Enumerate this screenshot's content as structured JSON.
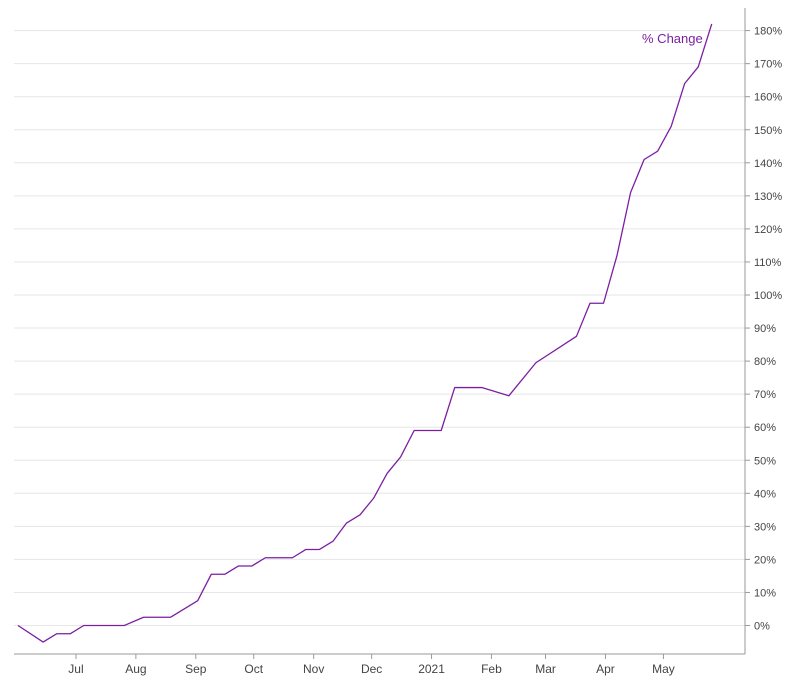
{
  "colors": {
    "series": "#7b1fa2",
    "grid": "#e6e6e6",
    "axis": "#9a9a9a",
    "tick_text": "#444444"
  },
  "chart_data": {
    "type": "line",
    "xlabel": "",
    "ylabel": "",
    "grid": true,
    "x_axis": {
      "type": "date",
      "tick_labels": [
        "Jul",
        "Aug",
        "Sep",
        "Oct",
        "Nov",
        "Dec",
        "2021",
        "Feb",
        "Mar",
        "Apr",
        "May"
      ],
      "tick_dates": [
        "2020-07-01",
        "2020-08-01",
        "2020-09-01",
        "2020-10-01",
        "2020-11-01",
        "2020-12-01",
        "2021-01-01",
        "2021-02-01",
        "2021-03-01",
        "2021-04-01",
        "2021-05-01"
      ],
      "range": [
        "2020-06-01",
        "2021-06-06"
      ]
    },
    "y_axis": {
      "position": "right",
      "unit": "%",
      "ticks": [
        0,
        10,
        20,
        30,
        40,
        50,
        60,
        70,
        80,
        90,
        100,
        110,
        120,
        130,
        140,
        150,
        160,
        170,
        180
      ],
      "range": [
        -8,
        185
      ]
    },
    "series": [
      {
        "name": "% Change",
        "label_position": "end",
        "points": [
          [
            "2020-06-01",
            0
          ],
          [
            "2020-06-14",
            -5
          ],
          [
            "2020-06-21",
            -2.5
          ],
          [
            "2020-06-28",
            -2.5
          ],
          [
            "2020-07-05",
            0
          ],
          [
            "2020-07-12",
            0
          ],
          [
            "2020-07-26",
            0
          ],
          [
            "2020-08-05",
            2.5
          ],
          [
            "2020-08-19",
            2.5
          ],
          [
            "2020-09-02",
            7.5
          ],
          [
            "2020-09-09",
            15.5
          ],
          [
            "2020-09-16",
            15.5
          ],
          [
            "2020-09-23",
            18
          ],
          [
            "2020-09-30",
            18
          ],
          [
            "2020-10-07",
            20.5
          ],
          [
            "2020-10-21",
            20.5
          ],
          [
            "2020-10-28",
            23
          ],
          [
            "2020-11-04",
            23
          ],
          [
            "2020-11-11",
            25.5
          ],
          [
            "2020-11-18",
            31
          ],
          [
            "2020-11-25",
            33.5
          ],
          [
            "2020-12-02",
            38.5
          ],
          [
            "2020-12-09",
            46
          ],
          [
            "2020-12-16",
            51
          ],
          [
            "2020-12-23",
            59
          ],
          [
            "2021-01-06",
            59
          ],
          [
            "2021-01-13",
            72
          ],
          [
            "2021-01-27",
            72
          ],
          [
            "2021-02-10",
            69.5
          ],
          [
            "2021-02-24",
            79.5
          ],
          [
            "2021-03-17",
            87.5
          ],
          [
            "2021-03-24",
            97.5
          ],
          [
            "2021-03-31",
            97.5
          ],
          [
            "2021-04-07",
            112
          ],
          [
            "2021-04-14",
            131
          ],
          [
            "2021-04-21",
            141
          ],
          [
            "2021-04-28",
            143.5
          ],
          [
            "2021-05-05",
            151
          ],
          [
            "2021-05-12",
            164
          ],
          [
            "2021-05-19",
            169
          ],
          [
            "2021-05-26",
            182
          ]
        ]
      }
    ]
  }
}
